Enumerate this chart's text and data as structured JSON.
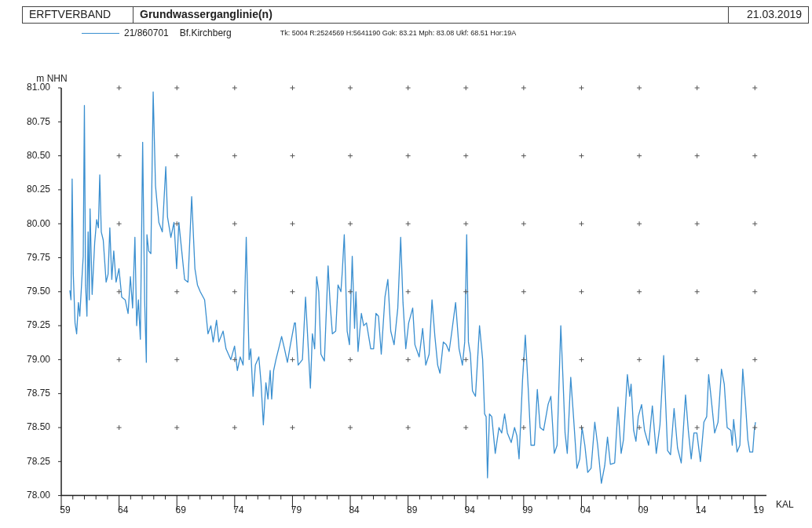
{
  "chart_data": {
    "type": "line",
    "title": "Grundwasserganglinie(n)",
    "xlabel": "KAL",
    "ylabel": "m NHN",
    "annotations": [
      "ERFTVERBAND",
      "21.03.2019",
      "Bf.Kirchberg",
      "Tk: 5004 R:2524569 H:5641190 Gok:  83.21 Mph:  83.08 Ukf:  68.51 Hor:19A"
    ],
    "legend": "top left",
    "grid": true,
    "marker": "none",
    "line_style": "solid",
    "xlim": [
      1959,
      2020
    ],
    "ylim": [
      78,
      81
    ],
    "yticks": [
      {
        "value": 78,
        "label": "78.00"
      },
      {
        "value": 78.25,
        "label": "78.25"
      },
      {
        "value": 78.5,
        "label": "78.50"
      },
      {
        "value": 78.75,
        "label": "78.75"
      },
      {
        "value": 79,
        "label": "79.00"
      },
      {
        "value": 79.25,
        "label": "79.25"
      },
      {
        "value": 79.5,
        "label": "79.50"
      },
      {
        "value": 79.75,
        "label": "79.75"
      },
      {
        "value": 80,
        "label": "80.00"
      },
      {
        "value": 80.25,
        "label": "80.25"
      },
      {
        "value": 80.5,
        "label": "80.50"
      },
      {
        "value": 80.75,
        "label": "80.75"
      },
      {
        "value": 81,
        "label": "81.00"
      }
    ],
    "xticks": [
      {
        "value": 1959,
        "label": "59"
      },
      {
        "value": 1960,
        "label": null
      },
      {
        "value": 1961,
        "label": null
      },
      {
        "value": 1962,
        "label": null
      },
      {
        "value": 1963,
        "label": null
      },
      {
        "value": 1964,
        "label": "64"
      },
      {
        "value": 1965,
        "label": null
      },
      {
        "value": 1966,
        "label": null
      },
      {
        "value": 1967,
        "label": null
      },
      {
        "value": 1968,
        "label": null
      },
      {
        "value": 1969,
        "label": "69"
      },
      {
        "value": 1970,
        "label": null
      },
      {
        "value": 1971,
        "label": null
      },
      {
        "value": 1972,
        "label": null
      },
      {
        "value": 1973,
        "label": null
      },
      {
        "value": 1974,
        "label": "74"
      },
      {
        "value": 1975,
        "label": null
      },
      {
        "value": 1976,
        "label": null
      },
      {
        "value": 1977,
        "label": null
      },
      {
        "value": 1978,
        "label": null
      },
      {
        "value": 1979,
        "label": "79"
      },
      {
        "value": 1980,
        "label": null
      },
      {
        "value": 1981,
        "label": null
      },
      {
        "value": 1982,
        "label": null
      },
      {
        "value": 1983,
        "label": null
      },
      {
        "value": 1984,
        "label": "84"
      },
      {
        "value": 1985,
        "label": null
      },
      {
        "value": 1986,
        "label": null
      },
      {
        "value": 1987,
        "label": null
      },
      {
        "value": 1988,
        "label": null
      },
      {
        "value": 1989,
        "label": "89"
      },
      {
        "value": 1990,
        "label": null
      },
      {
        "value": 1991,
        "label": null
      },
      {
        "value": 1992,
        "label": null
      },
      {
        "value": 1993,
        "label": null
      },
      {
        "value": 1994,
        "label": "94"
      },
      {
        "value": 1995,
        "label": null
      },
      {
        "value": 1996,
        "label": null
      },
      {
        "value": 1997,
        "label": null
      },
      {
        "value": 1998,
        "label": null
      },
      {
        "value": 1999,
        "label": "99"
      },
      {
        "value": 2000,
        "label": null
      },
      {
        "value": 2001,
        "label": null
      },
      {
        "value": 2002,
        "label": null
      },
      {
        "value": 2003,
        "label": null
      },
      {
        "value": 2004,
        "label": "04"
      },
      {
        "value": 2005,
        "label": null
      },
      {
        "value": 2006,
        "label": null
      },
      {
        "value": 2007,
        "label": null
      },
      {
        "value": 2008,
        "label": null
      },
      {
        "value": 2009,
        "label": "09"
      },
      {
        "value": 2010,
        "label": null
      },
      {
        "value": 2011,
        "label": null
      },
      {
        "value": 2012,
        "label": null
      },
      {
        "value": 2013,
        "label": null
      },
      {
        "value": 2014,
        "label": "14"
      },
      {
        "value": 2015,
        "label": null
      },
      {
        "value": 2016,
        "label": null
      },
      {
        "value": 2017,
        "label": null
      },
      {
        "value": 2018,
        "label": null
      },
      {
        "value": 2019,
        "label": "19"
      }
    ],
    "series": [
      {
        "name": "21/860701",
        "color": "#3a8fd0",
        "x": [
          1959.74,
          1959.84,
          1959.94,
          1960.04,
          1960.19,
          1960.33,
          1960.48,
          1960.6,
          1960.78,
          1960.9,
          1961.0,
          1961.1,
          1961.22,
          1961.32,
          1961.42,
          1961.49,
          1961.67,
          1961.89,
          1962.06,
          1962.21,
          1962.33,
          1962.46,
          1962.63,
          1962.88,
          1963.05,
          1963.2,
          1963.37,
          1963.54,
          1963.74,
          1963.99,
          1964.23,
          1964.53,
          1964.78,
          1964.98,
          1965.17,
          1965.37,
          1965.52,
          1965.67,
          1965.84,
          1966.04,
          1966.21,
          1966.36,
          1966.41,
          1966.56,
          1966.75,
          1966.95,
          1967.15,
          1967.44,
          1967.74,
          1968.04,
          1968.19,
          1968.48,
          1968.75,
          1968.98,
          1969.17,
          1969.42,
          1969.67,
          1969.96,
          1970.28,
          1970.56,
          1970.78,
          1971.02,
          1971.4,
          1971.69,
          1971.94,
          1972.14,
          1972.43,
          1972.63,
          1973.0,
          1973.25,
          1973.67,
          1973.99,
          1974.23,
          1974.48,
          1974.73,
          1975.0,
          1975.25,
          1975.39,
          1975.59,
          1975.79,
          1976.09,
          1976.28,
          1976.48,
          1976.7,
          1976.88,
          1977.07,
          1977.2,
          1977.37,
          1977.57,
          1977.86,
          1978.06,
          1978.31,
          1978.56,
          1978.8,
          1979.17,
          1979.25,
          1979.49,
          1979.86,
          1980.13,
          1980.35,
          1980.55,
          1980.72,
          1980.92,
          1981.09,
          1981.27,
          1981.46,
          1981.76,
          1982.08,
          1982.25,
          1982.45,
          1982.74,
          1982.94,
          1983.19,
          1983.31,
          1983.48,
          1983.73,
          1983.93,
          1984.17,
          1984.37,
          1984.49,
          1984.67,
          1984.96,
          1985.16,
          1985.4,
          1985.77,
          1986.02,
          1986.22,
          1986.44,
          1986.68,
          1987.0,
          1987.25,
          1987.5,
          1987.79,
          1988.11,
          1988.36,
          1988.56,
          1988.8,
          1989.05,
          1989.4,
          1989.59,
          1989.96,
          1990.26,
          1990.53,
          1990.82,
          1991.07,
          1991.32,
          1991.56,
          1991.76,
          1992.05,
          1992.3,
          1992.55,
          1992.79,
          1993.11,
          1993.41,
          1993.7,
          1993.9,
          1994.07,
          1994.22,
          1994.39,
          1994.57,
          1994.83,
          1995.18,
          1995.45,
          1995.62,
          1995.75,
          1995.87,
          1996.04,
          1996.24,
          1996.54,
          1996.86,
          1997.1,
          1997.35,
          1997.59,
          1997.92,
          1998.21,
          1998.41,
          1998.6,
          1998.9,
          1999.14,
          1999.39,
          1999.63,
          1999.93,
          2000.18,
          2000.42,
          2000.72,
          2001.11,
          2001.35,
          2001.65,
          2001.89,
          2002.21,
          2002.38,
          2002.58,
          2002.77,
          2003.07,
          2003.31,
          2003.61,
          2003.85,
          2004.05,
          2004.29,
          2004.54,
          2004.83,
          2005.15,
          2005.4,
          2005.72,
          2006.01,
          2006.25,
          2006.5,
          2006.87,
          2007.16,
          2007.43,
          2007.63,
          2007.97,
          2008.17,
          2008.29,
          2008.51,
          2008.71,
          2008.91,
          2009.2,
          2009.45,
          2009.81,
          2010.13,
          2010.47,
          2010.79,
          2011.11,
          2011.45,
          2011.7,
          2012.01,
          2012.31,
          2012.63,
          2013.0,
          2013.24,
          2013.49,
          2013.73,
          2013.98,
          2014.29,
          2014.59,
          2014.83,
          2015.0,
          2015.2,
          2015.52,
          2015.81,
          2016.11,
          2016.35,
          2016.6,
          2016.92,
          2017.04,
          2017.16,
          2017.46,
          2017.7,
          2017.95,
          2018.19,
          2018.39,
          2018.56,
          2018.81,
          2018.95,
          2019.05
        ],
        "values": [
          79.51,
          79.44,
          80.33,
          79.63,
          79.27,
          79.19,
          79.42,
          79.32,
          79.59,
          79.76,
          80.87,
          79.55,
          79.32,
          79.94,
          79.44,
          80.11,
          79.48,
          79.86,
          80.03,
          79.97,
          80.36,
          79.94,
          79.88,
          79.57,
          79.63,
          79.97,
          79.59,
          79.8,
          79.57,
          79.67,
          79.46,
          79.44,
          79.34,
          79.61,
          79.38,
          79.9,
          79.25,
          79.44,
          79.15,
          80.6,
          79.44,
          78.98,
          79.92,
          79.8,
          79.78,
          80.97,
          80.28,
          80.01,
          79.94,
          80.42,
          80.05,
          79.9,
          80.01,
          79.67,
          80.01,
          79.8,
          79.59,
          79.57,
          80.2,
          79.67,
          79.55,
          79.5,
          79.44,
          79.19,
          79.25,
          79.13,
          79.29,
          79.13,
          79.21,
          79.08,
          79.0,
          79.1,
          78.92,
          79.02,
          78.96,
          79.9,
          79.0,
          79.08,
          78.73,
          78.96,
          79.02,
          78.83,
          78.52,
          78.83,
          78.71,
          78.92,
          78.71,
          78.92,
          79.0,
          79.1,
          79.17,
          79.08,
          78.98,
          79.1,
          79.27,
          79.27,
          78.96,
          79.0,
          79.46,
          79.11,
          78.79,
          79.19,
          79.08,
          79.61,
          79.5,
          79.04,
          78.99,
          79.69,
          79.42,
          79.19,
          79.21,
          79.55,
          79.5,
          79.65,
          79.92,
          79.21,
          79.11,
          79.76,
          79.23,
          79.5,
          79.06,
          79.34,
          79.25,
          79.27,
          79.08,
          79.08,
          79.34,
          79.32,
          79.04,
          79.46,
          79.59,
          79.21,
          79.11,
          79.38,
          79.9,
          79.42,
          79.08,
          79.27,
          79.38,
          79.11,
          79.02,
          79.23,
          78.96,
          79.04,
          79.44,
          79.17,
          78.96,
          78.9,
          79.13,
          79.11,
          79.06,
          79.21,
          79.42,
          79.08,
          78.96,
          79.13,
          79.92,
          79.13,
          79.04,
          78.77,
          78.73,
          79.25,
          79.0,
          78.6,
          78.58,
          78.13,
          78.6,
          78.58,
          78.31,
          78.5,
          78.46,
          78.6,
          78.46,
          78.39,
          78.5,
          78.44,
          78.27,
          78.85,
          79.18,
          78.79,
          78.37,
          78.37,
          78.78,
          78.5,
          78.48,
          78.67,
          78.73,
          78.31,
          78.37,
          79.25,
          78.9,
          78.46,
          78.31,
          78.87,
          78.58,
          78.2,
          78.27,
          78.5,
          78.37,
          78.17,
          78.2,
          78.54,
          78.37,
          78.09,
          78.22,
          78.43,
          78.23,
          78.24,
          78.65,
          78.31,
          78.41,
          78.89,
          78.73,
          78.82,
          78.48,
          78.4,
          78.58,
          78.67,
          78.48,
          78.37,
          78.66,
          78.31,
          78.52,
          79.03,
          78.33,
          78.3,
          78.64,
          78.35,
          78.24,
          78.74,
          78.48,
          78.27,
          78.46,
          78.46,
          78.25,
          78.54,
          78.58,
          78.89,
          78.73,
          78.46,
          78.54,
          78.93,
          78.82,
          78.5,
          78.48,
          78.37,
          78.56,
          78.32,
          78.37,
          78.93,
          78.67,
          78.41,
          78.32,
          78.32,
          78.48,
          78.54
        ]
      }
    ]
  }
}
